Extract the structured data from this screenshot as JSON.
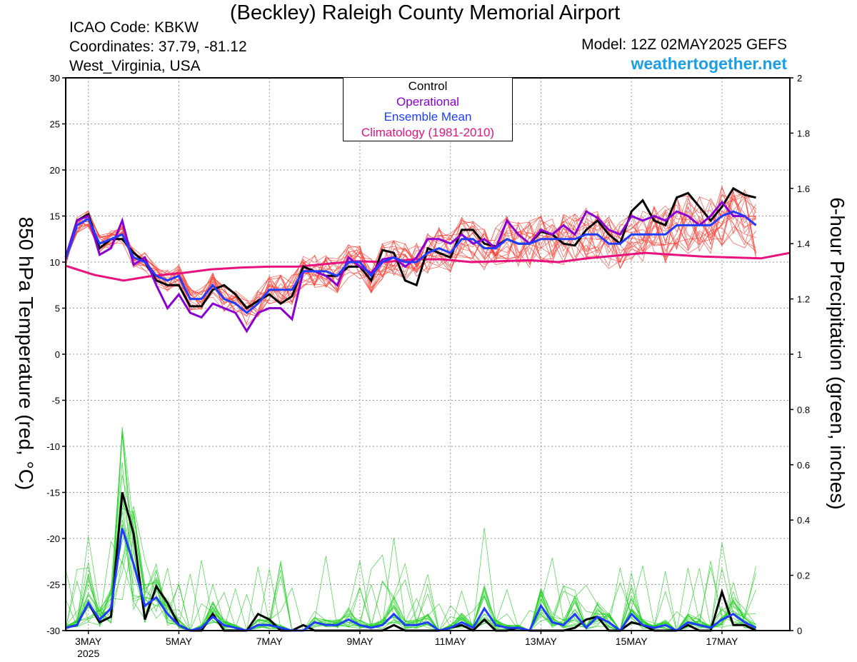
{
  "header": {
    "title": "(Beckley) Raleigh County Memorial Airport",
    "icao": "ICAO Code: KBKW",
    "coords": "Coordinates: 37.79, -81.12",
    "location": "West_Virginia, USA",
    "model": "Model: 12Z 02MAY2025 GEFS",
    "website": "weathertogether.net"
  },
  "legend": {
    "control": "Control",
    "operational": "Operational",
    "mean": "Ensemble Mean",
    "climo": "Climatology (1981-2010)"
  },
  "colors": {
    "control": "#000000",
    "operational": "#8a00d4",
    "mean": "#1f3cff",
    "climo": "#e8127e",
    "members_temp": "#ff3b2f",
    "members_precip": "#22d022",
    "website": "#1a9ee8"
  },
  "chart_data": {
    "type": "line",
    "left_axis_label": "850 hPa Temperature (red, °C)",
    "right_axis_label": "6-hour Precipitation (green, inches)",
    "left_ylim": [
      -30,
      30
    ],
    "left_ticks": [
      30,
      25,
      20,
      15,
      10,
      5,
      0,
      -5,
      -10,
      -15,
      -20,
      -25,
      -30
    ],
    "right_ylim": [
      0,
      2
    ],
    "right_ticks": [
      "2",
      "1.8",
      "1.6",
      "1.4",
      "1.2",
      "1",
      "0.8",
      "0.6",
      "0.4",
      "0.2",
      "0"
    ],
    "xlim_hours": [
      0,
      384
    ],
    "x_ticks": [
      {
        "label": "3MAY",
        "sub": "2025",
        "hour": 12
      },
      {
        "label": "5MAY",
        "hour": 60
      },
      {
        "label": "7MAY",
        "hour": 108
      },
      {
        "label": "9MAY",
        "hour": 156
      },
      {
        "label": "11MAY",
        "hour": 204
      },
      {
        "label": "13MAY",
        "hour": 252
      },
      {
        "label": "15MAY",
        "hour": 300
      },
      {
        "label": "17MAY",
        "hour": 348
      }
    ],
    "grid": true,
    "legend_position": "top-center",
    "series_temperature": {
      "Control": [
        10.5,
        14.5,
        15.2,
        11.5,
        12.5,
        12.5,
        11.0,
        10.0,
        8.0,
        7.5,
        7.5,
        5.2,
        5.2,
        7.0,
        7.5,
        6.5,
        5.0,
        5.8,
        6.5,
        5.5,
        6.3,
        9.5,
        9.0,
        8.5,
        8.5,
        9.5,
        9.5,
        8.0,
        11.3,
        11.0,
        8.0,
        7.5,
        11.5,
        11.0,
        10.5,
        13.5,
        13.5,
        12.0,
        11.7,
        12.5,
        12.0,
        12.0,
        13.3,
        13.0,
        12.0,
        11.8,
        13.5,
        14.5,
        13.0,
        12.0,
        15.5,
        16.7,
        14.5,
        14.0,
        17.0,
        17.5,
        16.0,
        14.5,
        16.0,
        18.0,
        17.3,
        17.0
      ],
      "Operational": [
        10.5,
        14.5,
        15.0,
        10.8,
        11.5,
        14.5,
        9.7,
        10.5,
        7.5,
        5.0,
        6.5,
        4.5,
        4.0,
        5.5,
        5.0,
        4.5,
        2.5,
        4.5,
        5.0,
        5.0,
        3.8,
        9.0,
        9.0,
        8.5,
        7.5,
        10.5,
        9.5,
        8.8,
        10.3,
        10.5,
        9.5,
        10.5,
        12.5,
        12.5,
        12.0,
        13.0,
        12.0,
        12.5,
        11.5,
        14.5,
        13.0,
        12.0,
        13.5,
        13.0,
        14.0,
        13.0,
        15.5,
        14.8,
        13.5,
        13.0,
        15.0,
        14.5,
        15.0,
        14.5,
        15.5,
        15.0,
        14.0,
        15.0,
        16.5,
        15.0,
        15.0,
        14.0
      ],
      "Ensemble Mean": [
        10.3,
        14.0,
        14.7,
        12.0,
        12.5,
        13.0,
        10.5,
        10.0,
        8.5,
        8.0,
        8.5,
        6.0,
        6.0,
        7.5,
        6.0,
        5.5,
        4.5,
        5.5,
        7.0,
        7.0,
        7.0,
        9.0,
        9.0,
        9.0,
        8.5,
        10.0,
        10.0,
        8.5,
        10.0,
        10.5,
        10.0,
        10.0,
        11.0,
        11.5,
        11.0,
        12.5,
        12.5,
        11.5,
        11.5,
        12.5,
        12.0,
        12.0,
        12.5,
        12.5,
        12.5,
        12.5,
        13.0,
        13.0,
        12.0,
        12.0,
        13.0,
        13.0,
        13.0,
        13.0,
        14.0,
        14.0,
        14.0,
        14.0,
        15.0,
        15.5,
        15.0,
        14.0
      ],
      "Climatology": [
        9.6,
        8.6,
        8.0,
        8.5,
        8.8,
        9.2,
        9.4,
        9.5,
        9.5,
        9.8,
        10.1,
        10.0,
        10.3,
        10.3,
        10.0,
        10.1,
        10.2,
        10.0,
        10.4,
        10.7,
        11.0,
        10.8,
        10.6,
        10.5,
        10.4,
        11.0
      ]
    },
    "series_precip": {
      "Control": [
        0.01,
        0.02,
        0.1,
        0.03,
        0.05,
        0.5,
        0.35,
        0.04,
        0.16,
        0.1,
        0.02,
        0.0,
        0.0,
        0.06,
        0.0,
        0.0,
        0.0,
        0.06,
        0.04,
        0.0,
        0.0,
        0.02,
        0.0,
        0.0,
        0.0,
        0.0,
        0.0,
        0.0,
        0.0,
        0.02,
        0.0,
        0.0,
        0.0,
        0.0,
        0.01,
        0.02,
        0.0,
        0.04,
        0.0,
        0.0,
        0.01,
        0.0,
        0.0,
        0.0,
        0.0,
        0.01,
        0.04,
        0.05,
        0.0,
        0.0,
        0.03,
        0.02,
        0.0,
        0.0,
        0.0,
        0.02,
        0.0,
        0.0,
        0.14,
        0.02,
        0.02,
        0.0
      ],
      "Ensemble Mean": [
        0.01,
        0.02,
        0.1,
        0.04,
        0.08,
        0.37,
        0.24,
        0.09,
        0.12,
        0.06,
        0.02,
        0.0,
        0.01,
        0.05,
        0.02,
        0.01,
        0.0,
        0.02,
        0.02,
        0.01,
        0.0,
        0.0,
        0.03,
        0.02,
        0.02,
        0.04,
        0.02,
        0.01,
        0.02,
        0.06,
        0.02,
        0.02,
        0.03,
        0.0,
        0.01,
        0.03,
        0.01,
        0.08,
        0.02,
        0.01,
        0.01,
        0.0,
        0.09,
        0.03,
        0.02,
        0.06,
        0.01,
        0.05,
        0.03,
        0.0,
        0.06,
        0.02,
        0.01,
        0.02,
        0.0,
        0.03,
        0.02,
        0.01,
        0.04,
        0.06,
        0.03,
        0.01
      ]
    }
  }
}
